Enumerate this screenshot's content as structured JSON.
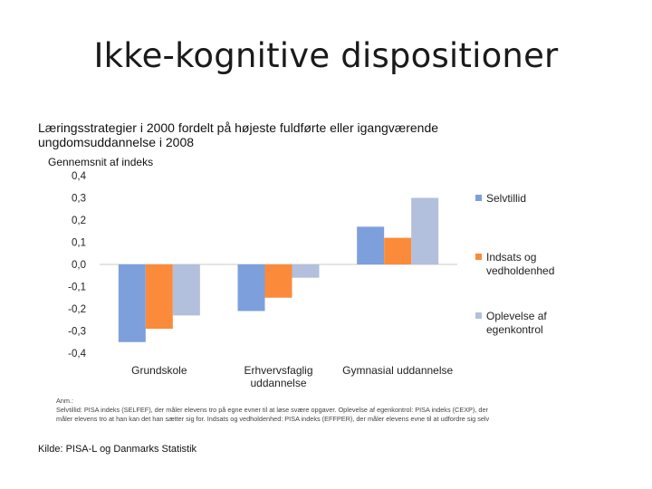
{
  "slide": {
    "title": "Ikke-kognitive dispositioner"
  },
  "chart_data": {
    "type": "bar",
    "title_line1": "Læringsstrategier i 2000 fordelt på højeste fuldførte eller igangværende",
    "title_line2": "ungdomsuddannelse i 2008",
    "ylabel": "Gennemsnit af indeks",
    "xlabel": "",
    "ylim": [
      -0.4,
      0.4
    ],
    "yticks": [
      0.4,
      0.3,
      0.2,
      0.1,
      0.0,
      -0.1,
      -0.2,
      -0.3,
      -0.4
    ],
    "ytick_labels": [
      "0,4",
      "0,3",
      "0,2",
      "0,1",
      "0,0",
      "-0,1",
      "-0,2",
      "-0,3",
      "-0,4"
    ],
    "categories": [
      [
        "Grundskole"
      ],
      [
        "Erhvervsfaglig",
        "uddannelse"
      ],
      [
        "Gymnasial  uddannelse"
      ]
    ],
    "series": [
      {
        "name_lines": [
          "Selvtillid"
        ],
        "color": "#7d9fdc",
        "values": [
          -0.35,
          -0.21,
          0.17
        ]
      },
      {
        "name_lines": [
          "Indsats og",
          "vedholdenhed"
        ],
        "color": "#fb8b3a",
        "values": [
          -0.29,
          -0.15,
          0.12
        ]
      },
      {
        "name_lines": [
          "Oplevelse af",
          "egenkontrol"
        ],
        "color": "#b2bfdd",
        "values": [
          -0.23,
          -0.06,
          0.3
        ]
      }
    ],
    "grid": false,
    "legend": "right"
  },
  "note": {
    "heading": "Anm.:",
    "line1": "Selvtillid: PISA indeks (SELFEF), der måler elevens tro på egne evner til at løse svære opgaver. Oplevelse af egenkontrol: PISA indeks (CEXP), der",
    "line2": "måler elevens tro at han kan det han sætter sig for. Indsats og vedholdenhed: PISA indeks (EFFPER), der måler elevens evne til at udfordre sig selv"
  },
  "source": {
    "text": "Kilde: PISA-L og Danmarks Statistik"
  }
}
